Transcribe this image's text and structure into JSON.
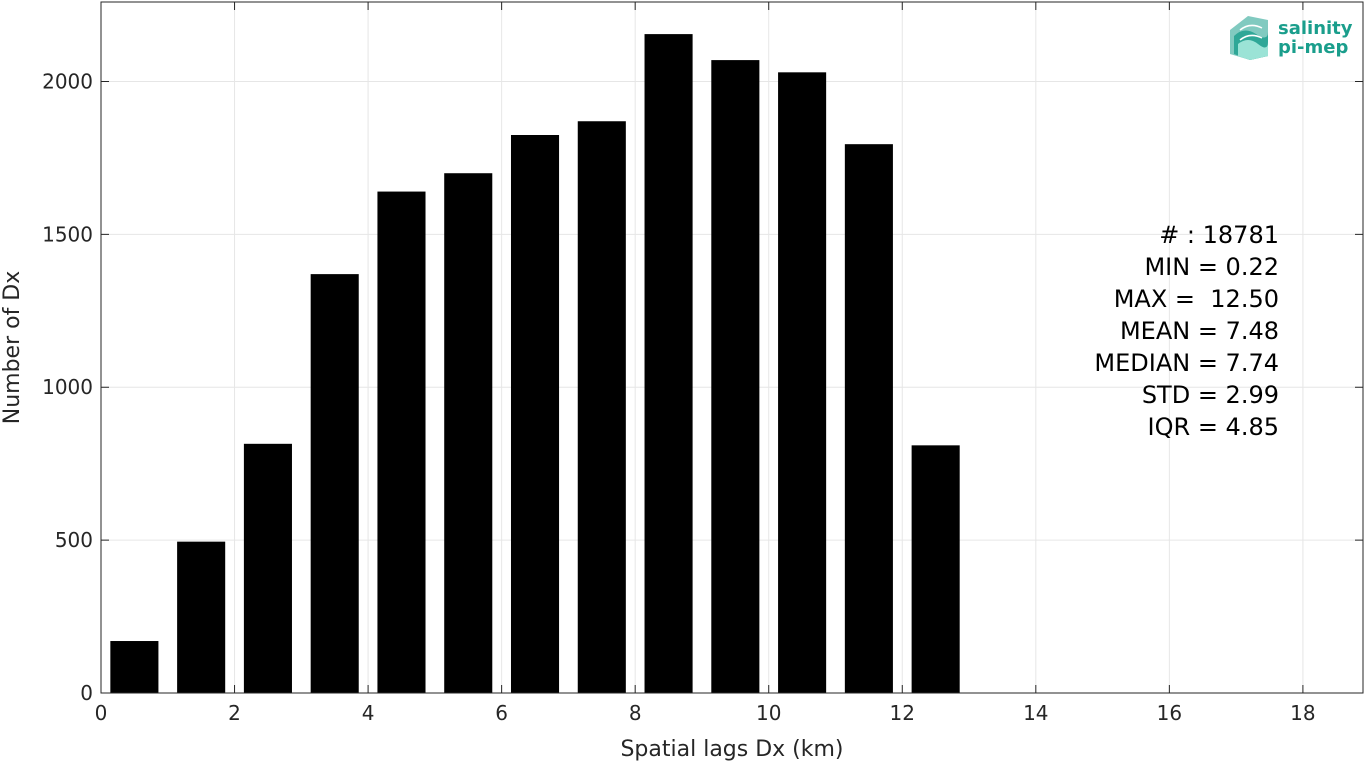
{
  "chart_data": {
    "type": "bar",
    "x": [
      0.5,
      1.5,
      2.5,
      3.5,
      4.5,
      5.5,
      6.5,
      7.5,
      8.5,
      9.5,
      10.5,
      11.5,
      12.5
    ],
    "values": [
      170,
      495,
      815,
      1370,
      1640,
      1700,
      1825,
      1870,
      2155,
      2070,
      2030,
      1795,
      810
    ],
    "xlabel": "Spatial lags Dx (km)",
    "ylabel": "Number of Dx",
    "xlim": [
      0,
      18.9
    ],
    "ylim": [
      0,
      2260
    ],
    "xticks": [
      0,
      2,
      4,
      6,
      8,
      10,
      12,
      14,
      16,
      18
    ],
    "yticks": [
      0,
      500,
      1000,
      1500,
      2000
    ],
    "grid": true,
    "bar_color": "#000000",
    "stats_annotation": [
      "# : 18781",
      "MIN = 0.22",
      "MAX =  12.50",
      "MEAN = 7.48",
      "MEDIAN = 7.74",
      "STD = 2.99",
      "IQR = 4.85"
    ]
  },
  "logo": {
    "line1": "salinity",
    "line2": "pi-mep",
    "color": "#1a9e8c"
  }
}
